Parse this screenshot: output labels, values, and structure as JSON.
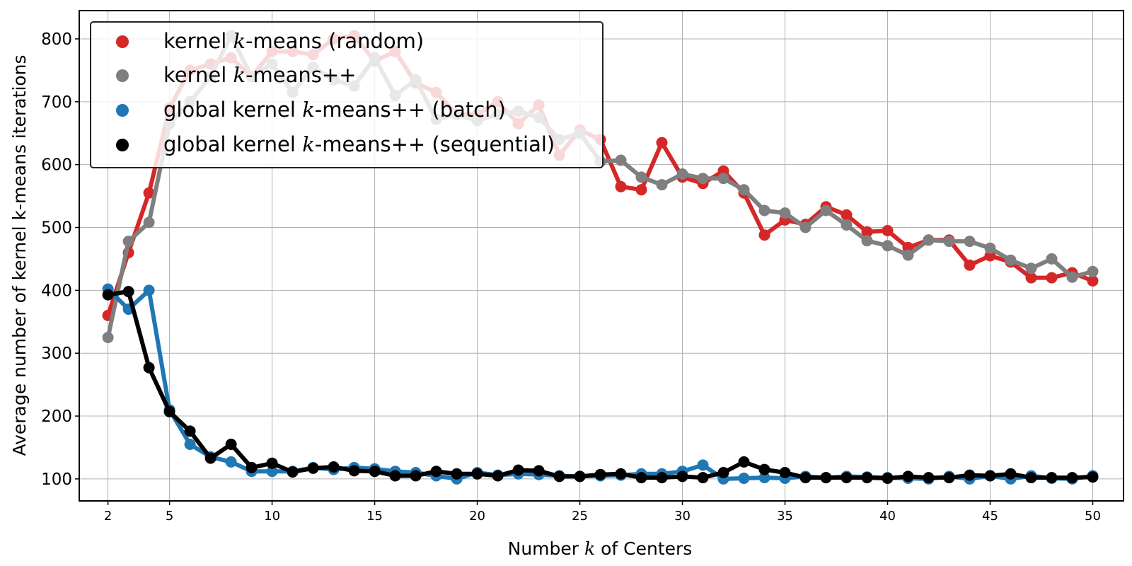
{
  "chart_data": {
    "type": "line",
    "xlabel": "Number k of Centers",
    "ylabel": "Average number of kernel k-means iterations",
    "xlim": [
      0.6,
      51.5
    ],
    "ylim": [
      65,
      845
    ],
    "xticks": [
      2,
      5,
      10,
      15,
      20,
      25,
      30,
      35,
      40,
      45,
      50
    ],
    "yticks": [
      100,
      200,
      300,
      400,
      500,
      600,
      700,
      800
    ],
    "grid": true,
    "legend_position": "top-left",
    "x": [
      2,
      3,
      4,
      5,
      6,
      7,
      8,
      9,
      10,
      11,
      12,
      13,
      14,
      15,
      16,
      17,
      18,
      19,
      20,
      21,
      22,
      23,
      24,
      25,
      26,
      27,
      28,
      29,
      30,
      31,
      32,
      33,
      34,
      35,
      36,
      37,
      38,
      39,
      40,
      41,
      42,
      43,
      44,
      45,
      46,
      47,
      48,
      49,
      50
    ],
    "series": [
      {
        "name": "kernel k-means (random)",
        "color": "#d62728",
        "values": [
          360,
          460,
          555,
          690,
          750,
          760,
          770,
          740,
          780,
          780,
          775,
          800,
          805,
          765,
          780,
          730,
          715,
          680,
          680,
          700,
          665,
          695,
          615,
          655,
          640,
          565,
          560,
          635,
          580,
          570,
          590,
          555,
          488,
          512,
          505,
          533,
          520,
          493,
          495,
          468,
          480,
          480,
          440,
          455,
          445,
          420,
          420,
          428,
          415
        ]
      },
      {
        "name": "kernel k-means++",
        "color": "#7f7f7f",
        "values": [
          325,
          478,
          508,
          665,
          700,
          740,
          805,
          740,
          760,
          715,
          755,
          735,
          725,
          770,
          710,
          735,
          672,
          680,
          670,
          680,
          685,
          675,
          640,
          650,
          605,
          607,
          580,
          568,
          585,
          578,
          578,
          560,
          527,
          523,
          500,
          527,
          504,
          479,
          471,
          456,
          480,
          478,
          478,
          467,
          448,
          435,
          450,
          421,
          430
        ]
      },
      {
        "name": "global kernel k-means++ (batch)",
        "color": "#1f77b4",
        "values": [
          402,
          370,
          400,
          210,
          155,
          135,
          127,
          112,
          112,
          112,
          118,
          115,
          118,
          116,
          112,
          110,
          105,
          100,
          110,
          106,
          108,
          107,
          105,
          104,
          105,
          106,
          108,
          108,
          112,
          122,
          100,
          101,
          102,
          101,
          104,
          102,
          104,
          103,
          102,
          101,
          100,
          104,
          100,
          105,
          100,
          105,
          101,
          100,
          105
        ]
      },
      {
        "name": "global kernel k-means++ (sequential)",
        "color": "#000000",
        "values": [
          393,
          398,
          277,
          207,
          176,
          133,
          155,
          118,
          125,
          111,
          117,
          119,
          113,
          112,
          105,
          105,
          112,
          108,
          108,
          105,
          114,
          113,
          104,
          104,
          107,
          108,
          102,
          102,
          104,
          102,
          110,
          127,
          115,
          110,
          102,
          102,
          102,
          102,
          101,
          104,
          102,
          102,
          106,
          105,
          108,
          102,
          102,
          102,
          103
        ]
      }
    ]
  },
  "legend": {
    "items": [
      {
        "prefix": "kernel ",
        "k": "k",
        "suffix": "-means (random)"
      },
      {
        "prefix": "kernel ",
        "k": "k",
        "suffix": "-means++"
      },
      {
        "prefix": "global kernel ",
        "k": "k",
        "suffix": "-means++ (batch)"
      },
      {
        "prefix": "global kernel ",
        "k": "k",
        "suffix": "-means++ (sequential)"
      }
    ]
  },
  "axes": {
    "xlabel_prefix": "Number ",
    "xlabel_k": "k",
    "xlabel_suffix": " of Centers",
    "ylabel": "Average number of kernel k-means iterations"
  }
}
